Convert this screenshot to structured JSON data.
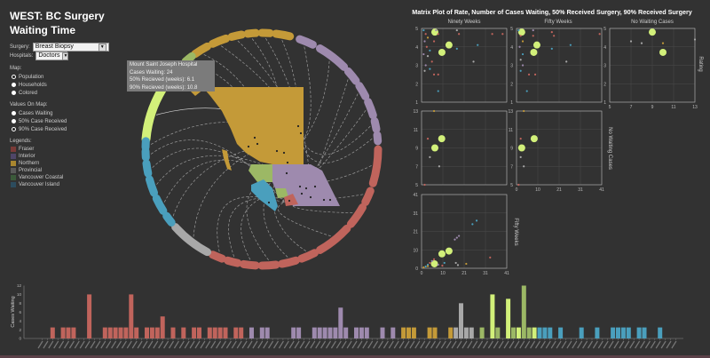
{
  "title": "WEST: BC Surgery Waiting Time",
  "controls": {
    "surgery_label": "Surgery:",
    "surgery_value": "Breast Biopsy",
    "hospitals_label": "Hospitals:",
    "hospitals_value": "Doctors",
    "map_label": "Map:",
    "map_options": [
      {
        "label": "Population",
        "checked": true
      },
      {
        "label": "Households",
        "checked": false
      },
      {
        "label": "Colored",
        "checked": false
      }
    ],
    "values_label": "Values On Map:",
    "values_options": [
      {
        "label": "Cases Waiting",
        "checked": false
      },
      {
        "label": "50% Case Received",
        "checked": false
      },
      {
        "label": "90% Case Received",
        "checked": true
      }
    ],
    "legend_label": "Legends:",
    "legend": [
      {
        "label": "Fraser",
        "code": "F",
        "color": "#7a3b38"
      },
      {
        "label": "Interior",
        "code": "I",
        "color": "#4f4668"
      },
      {
        "label": "Northern",
        "code": "N",
        "color": "#a8862f"
      },
      {
        "label": "Provincial",
        "code": "P",
        "color": "#5a5a5a"
      },
      {
        "label": "Vancouver Coastal",
        "code": "VC",
        "color": "#3b5a3a"
      },
      {
        "label": "Vancouver Island",
        "code": "B",
        "color": "#2c4c5e"
      }
    ]
  },
  "region_colors": {
    "F": "#c0645c",
    "I": "#9e8aae",
    "N": "#c49a38",
    "P": "#a8a8a8",
    "VC": "#9cb865",
    "VCh": "#d2f07a",
    "B": "#4a9fbd"
  },
  "tooltip": {
    "name": "Mount Saint Joseph Hospital",
    "cases": "Cases Waiting: 24",
    "p50": "50% Recieved (weeks): 6.1",
    "p90": "90% Recieved (weeks): 10.8"
  },
  "matrix": {
    "title": "Matrix Plot of Rate, Number of Cases Waiting, 50% Received Surgery, 90% Received Surgery",
    "col_labels": [
      "Ninety Weeks",
      "Fifty Weeks",
      "No Waiting Cases"
    ],
    "row_labels": [
      "Rating",
      "No Waiting Cases",
      "Fifty Weeks"
    ],
    "ranges": {
      "rating": {
        "min": 1,
        "max": 5,
        "ticks": [
          "1",
          "2",
          "3",
          "4",
          "5"
        ]
      },
      "weeks": {
        "min": 0,
        "max": 41,
        "ticks": [
          "0",
          "10",
          "21",
          "31",
          "41"
        ]
      },
      "nowait": {
        "min": 5,
        "max": 13,
        "ticks": [
          "5",
          "7",
          "9",
          "11",
          "13"
        ]
      }
    }
  },
  "chart_data": [
    {
      "type": "scatter",
      "title": "Matrix Plot of Rate, Number of Cases Waiting, 50% Received Surgery, 90% Received Surgery",
      "panels": [
        {
          "x": "Ninety Weeks",
          "y": "Rating",
          "points": [
            [
              6.4,
              4.8,
              "VCh",
              1
            ],
            [
              13.2,
              4.1,
              "VCh",
              1
            ],
            [
              9.8,
              3.7,
              "VCh",
              1
            ],
            [
              1,
              4.9,
              "B",
              0
            ],
            [
              2,
              4.7,
              "F",
              0
            ],
            [
              3,
              4.5,
              "N",
              0
            ],
            [
              1.5,
              4.3,
              "I",
              0
            ],
            [
              2.5,
              4.0,
              "F",
              0
            ],
            [
              4,
              3.8,
              "B",
              0
            ],
            [
              1,
              3.6,
              "I",
              0
            ],
            [
              3,
              3.5,
              "P",
              0
            ],
            [
              5,
              3.2,
              "F",
              0
            ],
            [
              2,
              3.0,
              "I",
              0
            ],
            [
              4,
              2.8,
              "B",
              0
            ],
            [
              1.5,
              2.7,
              "P",
              0
            ],
            [
              6,
              2.5,
              "F",
              0
            ],
            [
              8,
              2.5,
              "F",
              0
            ],
            [
              8,
              4.7,
              "F",
              0
            ],
            [
              17,
              4.9,
              "P",
              0
            ],
            [
              18,
              4.7,
              "F",
              0
            ],
            [
              34,
              4.7,
              "F",
              0
            ],
            [
              39,
              4.7,
              "F",
              0
            ],
            [
              17,
              3.9,
              "B",
              0
            ],
            [
              27,
              4.1,
              "B",
              0
            ],
            [
              25,
              3.2,
              "P",
              0
            ],
            [
              8,
              1.6,
              "B",
              0
            ],
            [
              6,
              4.3,
              "F",
              0
            ],
            [
              7,
              4.9,
              "I",
              0
            ]
          ]
        },
        {
          "x": "Fifty Weeks",
          "y": "Rating",
          "points": [
            [
              2.5,
              4.8,
              "VCh",
              1
            ],
            [
              9.8,
              4.1,
              "VCh",
              1
            ],
            [
              8.3,
              3.7,
              "VCh",
              1
            ],
            [
              1,
              4.9,
              "B",
              0
            ],
            [
              2,
              4.6,
              "F",
              0
            ],
            [
              3,
              4.3,
              "N",
              0
            ],
            [
              1.5,
              4.0,
              "I",
              0
            ],
            [
              3,
              3.6,
              "B",
              0
            ],
            [
              2,
              3.3,
              "P",
              0
            ],
            [
              3,
              3.0,
              "I",
              0
            ],
            [
              2,
              2.7,
              "B",
              0
            ],
            [
              6,
              2.5,
              "F",
              0
            ],
            [
              9,
              2.5,
              "F",
              0
            ],
            [
              8,
              4.6,
              "F",
              0
            ],
            [
              17,
              4.8,
              "F",
              0
            ],
            [
              18,
              4.6,
              "F",
              0
            ],
            [
              40,
              4.7,
              "F",
              0
            ],
            [
              17,
              3.9,
              "B",
              0
            ],
            [
              26,
              4.1,
              "B",
              0
            ],
            [
              24,
              3.2,
              "P",
              0
            ],
            [
              5,
              1.6,
              "B",
              0
            ],
            [
              8,
              4.9,
              "I",
              0
            ]
          ]
        },
        {
          "x": "No Waiting Cases",
          "y": "Rating",
          "points": [
            [
              9,
              4.8,
              "VCh",
              1
            ],
            [
              10,
              3.7,
              "VCh",
              1
            ],
            [
              7,
              4.3,
              "P",
              0
            ],
            [
              8,
              4.2,
              "P",
              0
            ],
            [
              10,
              4.2,
              "N",
              0
            ],
            [
              13,
              4.4,
              "P",
              0
            ]
          ]
        },
        {
          "x": "Ninety Weeks",
          "y": "No Waiting Cases",
          "points": [
            [
              9.7,
              10,
              "VCh",
              1
            ],
            [
              6.4,
              9,
              "VCh",
              1
            ],
            [
              3,
              10,
              "F",
              0
            ],
            [
              4,
              8,
              "P",
              0
            ],
            [
              8.5,
              7,
              "P",
              0
            ],
            [
              6,
              13,
              "N",
              0
            ],
            [
              1.5,
              5,
              "F",
              0
            ]
          ]
        },
        {
          "x": "Fifty Weeks",
          "y": "No Waiting Cases",
          "points": [
            [
              8.5,
              10,
              "VCh",
              1
            ],
            [
              2.5,
              9,
              "VCh",
              1
            ],
            [
              2,
              10,
              "F",
              0
            ],
            [
              2,
              8,
              "P",
              0
            ],
            [
              3.5,
              7,
              "P",
              0
            ],
            [
              3.5,
              13,
              "N",
              0
            ],
            [
              1,
              5,
              "F",
              0
            ]
          ]
        },
        {
          "x": "Ninety Weeks",
          "y": "Fifty Weeks",
          "points": [
            [
              6.2,
              2.5,
              "VCh",
              1
            ],
            [
              9.8,
              8,
              "VCh",
              1
            ],
            [
              13.2,
              9.6,
              "VCh",
              1
            ],
            [
              24.5,
              24.5,
              "B",
              0
            ],
            [
              26.5,
              26.5,
              "B",
              0
            ],
            [
              16,
              16,
              "I",
              0
            ],
            [
              17,
              17,
              "I",
              0
            ],
            [
              18,
              18,
              "I",
              0
            ],
            [
              33,
              6,
              "F",
              0
            ],
            [
              21.5,
              2.5,
              "N",
              0
            ],
            [
              16.5,
              3,
              "P",
              0
            ],
            [
              17.5,
              1.8,
              "P",
              0
            ],
            [
              2,
              1,
              "B",
              0
            ],
            [
              3,
              2,
              "B",
              0
            ],
            [
              4,
              3,
              "F",
              0
            ],
            [
              5,
              4,
              "I",
              0
            ],
            [
              6,
              5,
              "F",
              0
            ],
            [
              3,
              1.2,
              "N",
              0
            ],
            [
              1,
              0.5,
              "N",
              0
            ],
            [
              8,
              2,
              "I",
              0
            ],
            [
              10,
              1.5,
              "F",
              0
            ],
            [
              11,
              3,
              "B",
              0
            ]
          ]
        }
      ]
    },
    {
      "type": "bar",
      "ylabel": "Cases Waiting",
      "ylim": [
        0,
        12
      ],
      "yticks": [
        "0",
        "2",
        "4",
        "6",
        "8",
        "10",
        "12"
      ],
      "bars": [
        [
          0,
          ""
        ],
        [
          0,
          ""
        ],
        [
          2.5,
          "F"
        ],
        [
          0,
          ""
        ],
        [
          2.5,
          "F"
        ],
        [
          2.5,
          "F"
        ],
        [
          2.5,
          "F"
        ],
        [
          0,
          ""
        ],
        [
          0,
          ""
        ],
        [
          10,
          "F"
        ],
        [
          0,
          ""
        ],
        [
          0,
          ""
        ],
        [
          2.5,
          "F"
        ],
        [
          2.5,
          "F"
        ],
        [
          2.5,
          "F"
        ],
        [
          2.5,
          "F"
        ],
        [
          2.5,
          "F"
        ],
        [
          10,
          "F"
        ],
        [
          2.5,
          "F"
        ],
        [
          0,
          ""
        ],
        [
          2.5,
          "F"
        ],
        [
          2.5,
          "F"
        ],
        [
          2.5,
          "F"
        ],
        [
          5,
          "F"
        ],
        [
          0,
          ""
        ],
        [
          2.5,
          "F"
        ],
        [
          0,
          ""
        ],
        [
          2.5,
          "F"
        ],
        [
          0,
          ""
        ],
        [
          2.5,
          "F"
        ],
        [
          2.5,
          "F"
        ],
        [
          0,
          ""
        ],
        [
          2.5,
          "F"
        ],
        [
          2.5,
          "F"
        ],
        [
          2.5,
          "F"
        ],
        [
          2.5,
          "F"
        ],
        [
          0,
          ""
        ],
        [
          2.5,
          "F"
        ],
        [
          2.5,
          "F"
        ],
        [
          0,
          ""
        ],
        [
          2.5,
          "I"
        ],
        [
          0,
          ""
        ],
        [
          2.5,
          "I"
        ],
        [
          2.5,
          "I"
        ],
        [
          0,
          ""
        ],
        [
          0,
          ""
        ],
        [
          0,
          ""
        ],
        [
          0,
          ""
        ],
        [
          2.5,
          "I"
        ],
        [
          2.5,
          "I"
        ],
        [
          0,
          ""
        ],
        [
          0,
          ""
        ],
        [
          2.5,
          "I"
        ],
        [
          2.5,
          "I"
        ],
        [
          2.5,
          "I"
        ],
        [
          2.5,
          "I"
        ],
        [
          2.5,
          "I"
        ],
        [
          7,
          "I"
        ],
        [
          2.5,
          "I"
        ],
        [
          0,
          ""
        ],
        [
          2.5,
          "I"
        ],
        [
          2.5,
          "I"
        ],
        [
          2.5,
          "I"
        ],
        [
          0,
          ""
        ],
        [
          0,
          ""
        ],
        [
          2.5,
          "I"
        ],
        [
          0,
          ""
        ],
        [
          2.5,
          "I"
        ],
        [
          0,
          ""
        ],
        [
          2.5,
          "N"
        ],
        [
          2.5,
          "N"
        ],
        [
          2.5,
          "N"
        ],
        [
          0,
          ""
        ],
        [
          0,
          ""
        ],
        [
          2.5,
          "N"
        ],
        [
          2.5,
          "N"
        ],
        [
          0,
          ""
        ],
        [
          0,
          ""
        ],
        [
          2.5,
          "N"
        ],
        [
          2.5,
          "P"
        ],
        [
          8,
          "P"
        ],
        [
          2.5,
          "P"
        ],
        [
          2.5,
          "P"
        ],
        [
          0,
          ""
        ],
        [
          2.5,
          "VC"
        ],
        [
          0,
          ""
        ],
        [
          10,
          "VCh"
        ],
        [
          2.5,
          "VC"
        ],
        [
          0,
          ""
        ],
        [
          9,
          "VCh"
        ],
        [
          2.5,
          "VC"
        ],
        [
          2.5,
          "VCh"
        ],
        [
          12,
          "VC"
        ],
        [
          2.5,
          "VC"
        ],
        [
          2.5,
          "VCh"
        ],
        [
          2.5,
          "B"
        ],
        [
          2.5,
          "B"
        ],
        [
          2.5,
          "B"
        ],
        [
          0,
          ""
        ],
        [
          2.5,
          "B"
        ],
        [
          0,
          ""
        ],
        [
          0,
          ""
        ],
        [
          0,
          ""
        ],
        [
          2.5,
          "B"
        ],
        [
          0,
          ""
        ],
        [
          0,
          ""
        ],
        [
          2.5,
          "B"
        ],
        [
          0,
          ""
        ],
        [
          0,
          ""
        ],
        [
          2.5,
          "B"
        ],
        [
          2.5,
          "B"
        ],
        [
          2.5,
          "B"
        ],
        [
          2.5,
          "B"
        ],
        [
          0,
          ""
        ],
        [
          2.5,
          "B"
        ],
        [
          2.5,
          "B"
        ],
        [
          0,
          ""
        ],
        [
          0,
          ""
        ],
        [
          2.5,
          "B"
        ],
        [
          0,
          ""
        ],
        [
          0,
          ""
        ],
        [
          0,
          ""
        ]
      ]
    }
  ]
}
